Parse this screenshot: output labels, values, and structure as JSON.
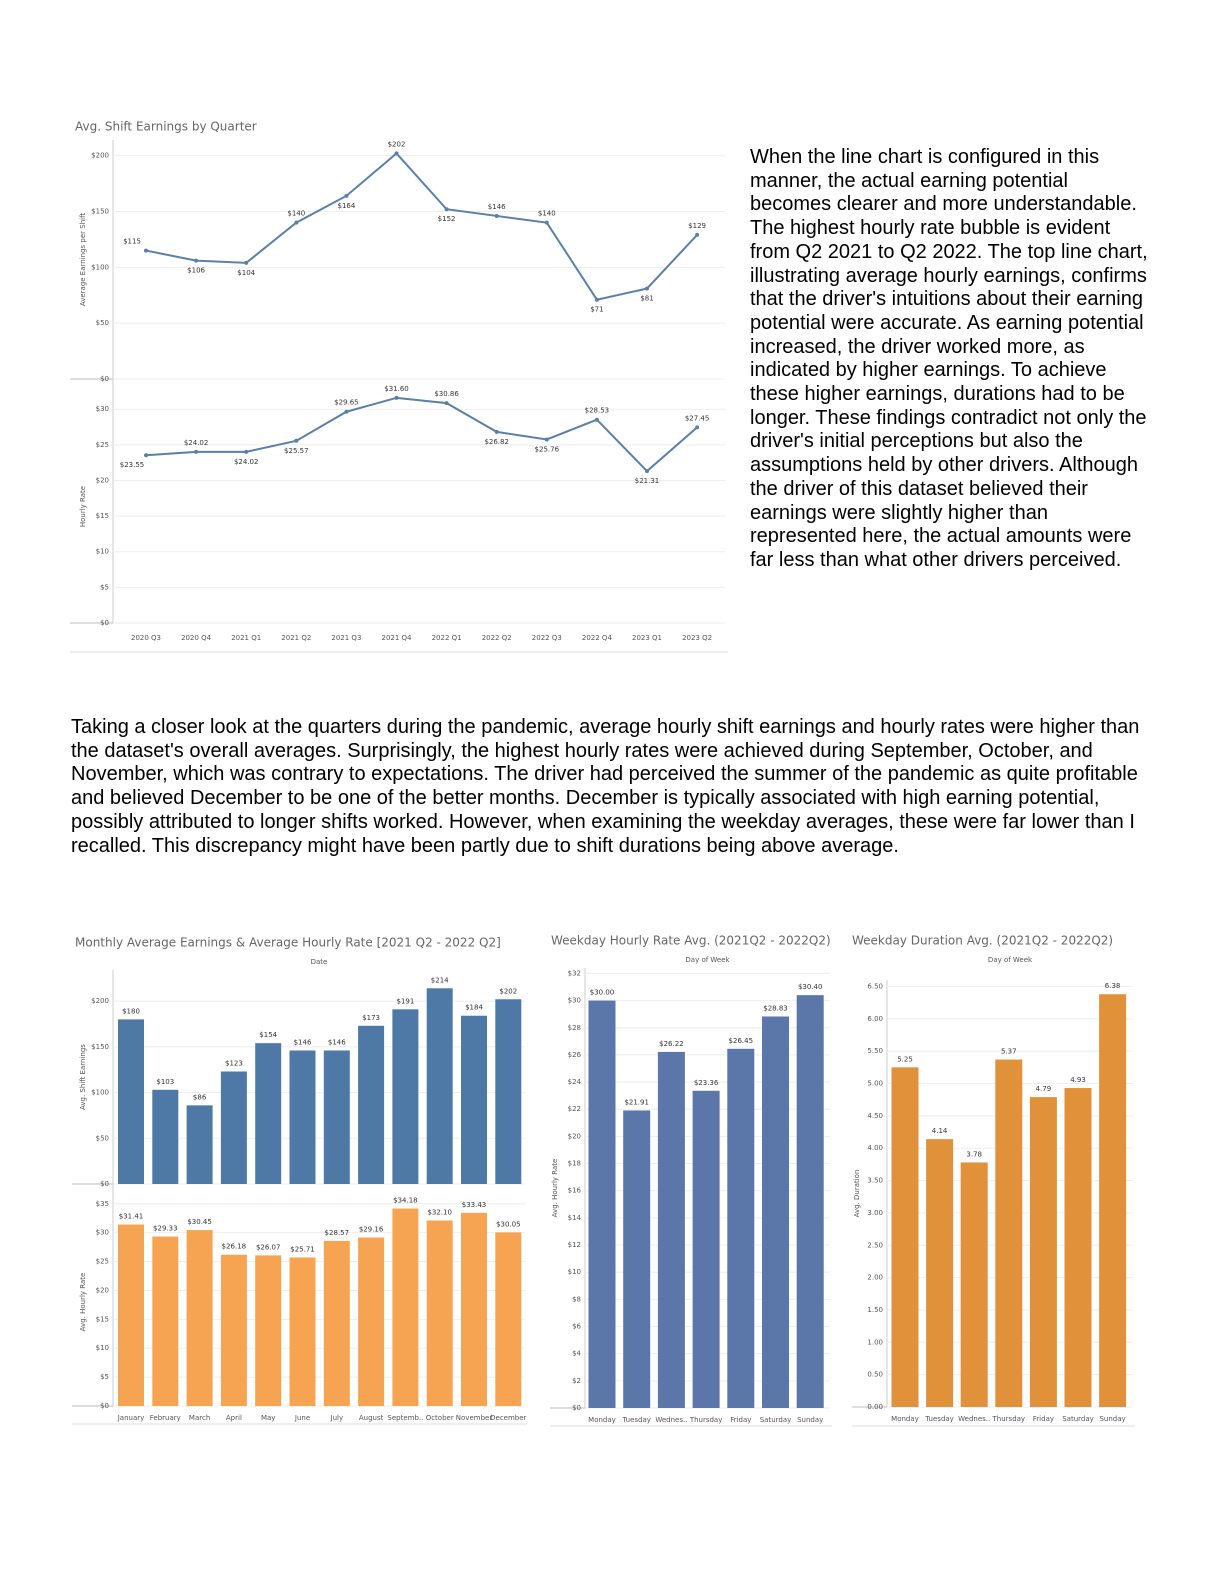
{
  "paragraphs": [
    "When the line chart is configured in this manner, the actual earning potential becomes clearer and more understandable. The highest hourly rate bubble is evident from Q2 2021 to Q2 2022. The top line chart, illustrating average hourly earnings, confirms that the driver's intuitions about their earning potential were accurate. As earning potential increased, the driver worked more, as indicated by higher earnings. To achieve these higher earnings, durations had to be longer. These findings contradict not only the driver's initial perceptions but also the assumptions held by other drivers. Although the driver of this dataset believed their earnings were slightly higher than represented here, the actual amounts were far less than what other drivers perceived.",
    "Taking a closer look at the quarters during the pandemic, average hourly shift earnings and hourly rates were higher than the dataset's overall averages. Surprisingly, the highest hourly rates were achieved during September, October, and November, which was contrary to expectations. The driver had perceived the summer of the pandemic as quite profitable and believed December to be one of the better months. December is typically associated with high earning potential, possibly attributed to longer shifts worked. However, when examining the weekday averages, these were far lower than I recalled. This discrepancy might have been partly due to shift durations being above average."
  ],
  "chart_data": [
    {
      "type": "line",
      "title": "Avg. Shift Earnings by Quarter",
      "categories": [
        "2020 Q3",
        "2020 Q4",
        "2021 Q1",
        "2021 Q2",
        "2021 Q3",
        "2021 Q4",
        "2022 Q1",
        "2022 Q2",
        "2022 Q3",
        "2022 Q4",
        "2023 Q1",
        "2023 Q2"
      ],
      "grid": true,
      "panels": [
        {
          "y_label": "Average Earnings per Shift",
          "color": "#5a7fa8",
          "ylim": [
            0,
            214
          ],
          "yticks": [
            {
              "value": 0,
              "label": "$0"
            },
            {
              "value": 50,
              "label": "$50"
            },
            {
              "value": 100,
              "label": "$100"
            },
            {
              "value": 150,
              "label": "$150"
            },
            {
              "value": 200,
              "label": "$200"
            }
          ],
          "values": [
            115,
            106,
            104,
            140,
            164,
            202,
            152,
            146,
            140,
            71,
            81,
            129
          ],
          "value_labels": [
            "$115",
            "$106",
            "$104",
            "$140",
            "$164",
            "$202",
            "$152",
            "$146",
            "$140",
            "$71",
            "$81",
            "$129"
          ]
        },
        {
          "y_label": "Hourly Rate",
          "color": "#5a7fa8",
          "ylim": [
            0,
            32.7
          ],
          "yticks": [
            {
              "value": 0,
              "label": "$0"
            },
            {
              "value": 5,
              "label": "$5"
            },
            {
              "value": 10,
              "label": "$10"
            },
            {
              "value": 15,
              "label": "$15"
            },
            {
              "value": 20,
              "label": "$20"
            },
            {
              "value": 25,
              "label": "$25"
            },
            {
              "value": 30,
              "label": "$30"
            }
          ],
          "values": [
            23.55,
            24.02,
            24.02,
            25.57,
            29.65,
            31.6,
            30.86,
            26.82,
            25.76,
            28.53,
            21.31,
            27.45
          ],
          "value_labels": [
            "$23.55",
            "$24.02",
            "$24.02",
            "$25.57",
            "$29.65",
            "$31.60",
            "$30.86",
            "$26.82",
            "$25.76",
            "$28.53",
            "$21.31",
            "$27.45"
          ]
        }
      ]
    },
    {
      "type": "bar",
      "title": "Monthly Average Earnings & Average Hourly Rate [2021 Q2 - 2022 Q2]",
      "x_label": "Date",
      "categories": [
        "January",
        "February",
        "March",
        "April",
        "May",
        "June",
        "July",
        "August",
        "Septemb..",
        "October",
        "November",
        "December"
      ],
      "grid": true,
      "panels": [
        {
          "y_label": "Avg. Shift Earnings",
          "color": "#4e79a7",
          "ylim": [
            0,
            234
          ],
          "yticks": [
            {
              "value": 0,
              "label": "$0"
            },
            {
              "value": 50,
              "label": "$50"
            },
            {
              "value": 100,
              "label": "$100"
            },
            {
              "value": 150,
              "label": "$150"
            },
            {
              "value": 200,
              "label": "$200"
            }
          ],
          "values": [
            180,
            103,
            86,
            123,
            154,
            146,
            146,
            173,
            191,
            214,
            184,
            202
          ],
          "value_labels": [
            "$180",
            "$103",
            "$86",
            "$123",
            "$154",
            "$146",
            "$146",
            "$173",
            "$191",
            "$214",
            "$184",
            "$202"
          ]
        },
        {
          "y_label": "Avg. Hourly Rate",
          "color": "#f7a452",
          "ylim": [
            0,
            36
          ],
          "yticks": [
            {
              "value": 0,
              "label": "$0"
            },
            {
              "value": 5,
              "label": "$5"
            },
            {
              "value": 10,
              "label": "$10"
            },
            {
              "value": 15,
              "label": "$15"
            },
            {
              "value": 20,
              "label": "$20"
            },
            {
              "value": 25,
              "label": "$25"
            },
            {
              "value": 30,
              "label": "$30"
            },
            {
              "value": 35,
              "label": "$35"
            }
          ],
          "values": [
            31.41,
            29.33,
            30.45,
            26.18,
            26.07,
            25.71,
            28.57,
            29.16,
            34.18,
            32.1,
            33.43,
            30.05
          ],
          "value_labels": [
            "$31.41",
            "$29.33",
            "$30.45",
            "$26.18",
            "$26.07",
            "$25.71",
            "$28.57",
            "$29.16",
            "$34.18",
            "$32.10",
            "$33.43",
            "$30.05"
          ]
        }
      ]
    },
    {
      "type": "bar",
      "title": "Weekday Hourly Rate Avg. (2021Q2 - 2022Q2)",
      "x_label": "Day of Week",
      "categories": [
        "Monday",
        "Tuesday",
        "Wednes..",
        "Thursday",
        "Friday",
        "Saturday",
        "Sunday"
      ],
      "grid": true,
      "panels": [
        {
          "y_label": "Avg. Hourly Rate",
          "color": "#5b76a8",
          "ylim": [
            0,
            32.4
          ],
          "yticks": [
            {
              "value": 0,
              "label": "$0"
            },
            {
              "value": 2,
              "label": "$2"
            },
            {
              "value": 4,
              "label": "$4"
            },
            {
              "value": 6,
              "label": "$6"
            },
            {
              "value": 8,
              "label": "$8"
            },
            {
              "value": 10,
              "label": "$10"
            },
            {
              "value": 12,
              "label": "$12"
            },
            {
              "value": 14,
              "label": "$14"
            },
            {
              "value": 16,
              "label": "$16"
            },
            {
              "value": 18,
              "label": "$18"
            },
            {
              "value": 20,
              "label": "$20"
            },
            {
              "value": 22,
              "label": "$22"
            },
            {
              "value": 24,
              "label": "$24"
            },
            {
              "value": 26,
              "label": "$26"
            },
            {
              "value": 28,
              "label": "$28"
            },
            {
              "value": 30,
              "label": "$30"
            },
            {
              "value": 32,
              "label": "$32"
            }
          ],
          "values": [
            30.0,
            21.91,
            26.22,
            23.36,
            26.45,
            28.83,
            30.4
          ],
          "value_labels": [
            "$30.00",
            "$21.91",
            "$26.22",
            "$23.36",
            "$26.45",
            "$28.83",
            "$30.40"
          ]
        }
      ]
    },
    {
      "type": "bar",
      "title": "Weekday Duration Avg. (2021Q2 - 2022Q2)",
      "x_label": "Day of Week",
      "categories": [
        "Monday",
        "Tuesday",
        "Wednes..",
        "Thursday",
        "Friday",
        "Saturday",
        "Sunday"
      ],
      "grid": true,
      "panels": [
        {
          "y_label": "Avg. Duration",
          "color": "#e0913a",
          "ylim": [
            0,
            6.6
          ],
          "yticks": [
            {
              "value": 0,
              "label": "0.00"
            },
            {
              "value": 0.5,
              "label": "0.50"
            },
            {
              "value": 1,
              "label": "1.00"
            },
            {
              "value": 1.5,
              "label": "1.50"
            },
            {
              "value": 2,
              "label": "2.00"
            },
            {
              "value": 2.5,
              "label": "2.50"
            },
            {
              "value": 3,
              "label": "3.00"
            },
            {
              "value": 3.5,
              "label": "3.50"
            },
            {
              "value": 4,
              "label": "4.00"
            },
            {
              "value": 4.5,
              "label": "4.50"
            },
            {
              "value": 5,
              "label": "5.00"
            },
            {
              "value": 5.5,
              "label": "5.50"
            },
            {
              "value": 6,
              "label": "6.00"
            },
            {
              "value": 6.5,
              "label": "6.50"
            }
          ],
          "values": [
            5.25,
            4.14,
            3.78,
            5.37,
            4.79,
            4.93,
            6.38
          ]
        }
      ]
    }
  ]
}
